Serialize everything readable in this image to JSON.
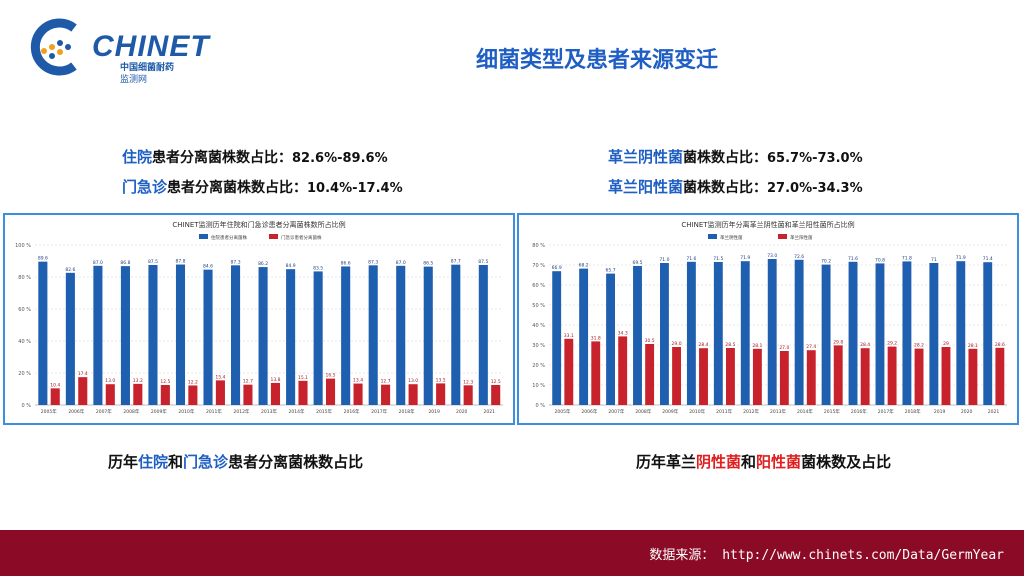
{
  "logo": {
    "name": "CHINET",
    "sub1": "中国细菌耐药",
    "sub2": "监测网"
  },
  "page_title": "细菌类型及患者来源变迁",
  "summary_left": {
    "line1": {
      "hl": "住院",
      "rest": "患者分离菌株数占比：",
      "value": "82.6%-89.6%"
    },
    "line2": {
      "hl": "门急诊",
      "rest": "患者分离菌株数占比：",
      "value": "10.4%-17.4%"
    }
  },
  "summary_right": {
    "line1": {
      "hl": "革兰阴性菌",
      "rest": "菌株数占比：",
      "value": "65.7%-73.0%"
    },
    "line2": {
      "hl": "革兰阳性菌",
      "rest": "菌株数占比：",
      "value": "27.0%-34.3%"
    }
  },
  "colors": {
    "blue": "#1f5fb0",
    "red": "#c8232c",
    "title_blue": "#1f5fc4",
    "footer": "#8b0a26"
  },
  "chart_data": [
    {
      "type": "bar",
      "title": "CHINET监测历年住院和门急诊患者分离菌株数所占比例",
      "categories": [
        "2005年",
        "2006年",
        "2007年",
        "2008年",
        "2009年",
        "2010年",
        "2011年",
        "2012年",
        "2013年",
        "2014年",
        "2015年",
        "2016年",
        "2017年",
        "2018年",
        "2019",
        "2020",
        "2021"
      ],
      "series": [
        {
          "name": "住院患者分离菌株",
          "color": "#1f5fb0",
          "values": [
            89.6,
            82.6,
            87.0,
            86.8,
            87.5,
            87.8,
            84.6,
            87.3,
            86.2,
            84.9,
            83.5,
            86.6,
            87.3,
            87.0,
            86.5,
            87.7,
            87.5
          ],
          "labels": [
            "89.6",
            "82.6",
            "87.0",
            "86.8",
            "87.5",
            "87.8",
            "84.6",
            "87.3",
            "86.2",
            "84.9",
            "83.5",
            "86.6",
            "87.3",
            "87.0",
            "86.5",
            "87.7",
            "87.5"
          ]
        },
        {
          "name": "门急诊患者分离菌株",
          "color": "#c8232c",
          "values": [
            10.4,
            17.4,
            13.0,
            13.2,
            12.5,
            12.2,
            15.4,
            12.7,
            13.8,
            15.1,
            16.5,
            13.4,
            12.7,
            13.0,
            13.5,
            12.3,
            12.5
          ],
          "labels": [
            "10.4",
            "17.4",
            "13.0",
            "13.2",
            "12.5",
            "12.2",
            "15.4",
            "12.7",
            "13.8",
            "15.1",
            "16.5",
            "13.4",
            "12.7",
            "13.0",
            "13.5",
            "12.3",
            "12.5"
          ]
        }
      ],
      "ylim": [
        0,
        100
      ],
      "yticks": [
        "0 %",
        "20 %",
        "40 %",
        "60 %",
        "80 %",
        "100 %"
      ],
      "legend": "top-center",
      "grid": true,
      "caption": {
        "pre": "历年",
        "hl1": "住院",
        "mid": "和",
        "hl2": "门急诊",
        "post": "患者分离菌株数占比"
      }
    },
    {
      "type": "bar",
      "title": "CHINET监测历年分离革兰阴性菌和革兰阳性菌所占比例",
      "categories": [
        "2005年",
        "2006年",
        "2007年",
        "2008年",
        "2009年",
        "2010年",
        "2011年",
        "2012年",
        "2013年",
        "2014年",
        "2015年",
        "2016年",
        "2017年",
        "2018年",
        "2019",
        "2020",
        "2021"
      ],
      "series": [
        {
          "name": "革兰阴性菌",
          "color": "#1f5fb0",
          "values": [
            66.9,
            68.2,
            65.7,
            69.5,
            71.0,
            71.6,
            71.5,
            71.9,
            73.0,
            72.6,
            70.2,
            71.6,
            70.8,
            71.8,
            71,
            71.9,
            71.4
          ],
          "labels": [
            "66.9",
            "68.2",
            "65.7",
            "69.5",
            "71.0",
            "71.6",
            "71.5",
            "71.9",
            "73.0",
            "72.6",
            "70.2",
            "71.6",
            "70.8",
            "71.8",
            "71",
            "71.9",
            "71.4"
          ]
        },
        {
          "name": "革兰阳性菌",
          "color": "#c8232c",
          "values": [
            33.1,
            31.8,
            34.3,
            30.5,
            29.0,
            28.4,
            28.5,
            28.1,
            27.0,
            27.4,
            29.8,
            28.4,
            29.2,
            28.2,
            29,
            28.1,
            28.6
          ],
          "labels": [
            "33.1",
            "31.8",
            "34.3",
            "30.5",
            "29.0",
            "28.4",
            "28.5",
            "28.1",
            "27.0",
            "27.4",
            "29.8",
            "28.4",
            "29.2",
            "28.2",
            "29",
            "28.1",
            "28.6"
          ]
        }
      ],
      "ylim": [
        0,
        80
      ],
      "yticks": [
        "0 %",
        "10 %",
        "20 %",
        "30 %",
        "40 %",
        "50 %",
        "60 %",
        "70 %",
        "80 %"
      ],
      "legend": "top-center",
      "grid": true,
      "caption": {
        "pre": "历年革兰",
        "hl1": "阴性菌",
        "mid": "和",
        "hl2": "阳性菌",
        "post": "菌株数及占比"
      }
    }
  ],
  "footer": {
    "text": "数据来源：  http://www.chinets.com/Data/GermYear"
  }
}
